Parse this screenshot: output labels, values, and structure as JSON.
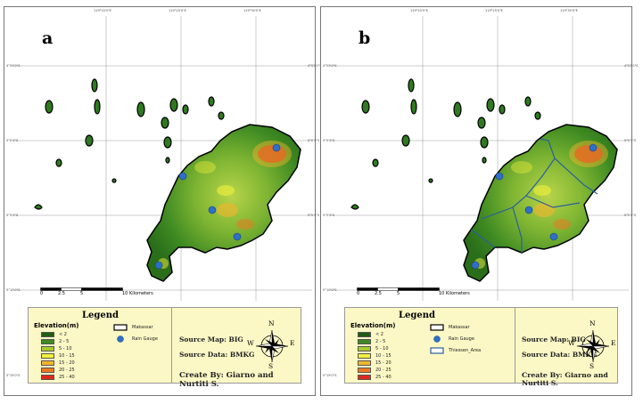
{
  "panels": [
    {
      "label": "a",
      "show_thiessen": false
    },
    {
      "label": "b",
      "show_thiessen": true
    }
  ],
  "ticks": {
    "top": [
      "119°20'0\"E",
      "119°25'0\"E",
      "119°30'0\"E"
    ],
    "side": [
      "4°55'0\"S",
      "5°0'0\"S",
      "5°5'0\"S",
      "5°10'0\"S",
      "5°15'0\"S"
    ]
  },
  "scale": {
    "labels": [
      "0",
      "2.5",
      "5",
      "10 Kilometers"
    ]
  },
  "legend": {
    "title": "Legend",
    "elevation_title": "Elevation(m)",
    "classes": [
      {
        "label": "< 2",
        "color": "#1f5d12"
      },
      {
        "label": "2 - 5",
        "color": "#3d8a1f"
      },
      {
        "label": "5 - 10",
        "color": "#a5cc2b"
      },
      {
        "label": "10 - 15",
        "color": "#f2f13a"
      },
      {
        "label": "15 - 20",
        "color": "#f3b52c"
      },
      {
        "label": "20 - 25",
        "color": "#ea7a21"
      },
      {
        "label": "25 - 40",
        "color": "#e0291d"
      }
    ],
    "boundary_label": "Makassar",
    "gauge_label": "Rain Gauge",
    "thiessen_label": "Thiessen_Area",
    "source_map": "Source Map: BIG",
    "source_data": "Source Data: BMKG",
    "creator": "Create By: Giarno and Nurtiti S.",
    "compass": {
      "n": "N",
      "s": "S",
      "e": "E",
      "w": "W"
    }
  },
  "colors": {
    "gauge": "#2f6fc8",
    "thiessen": "#2a5f9c",
    "legend_bg": "#fbf8c6"
  }
}
